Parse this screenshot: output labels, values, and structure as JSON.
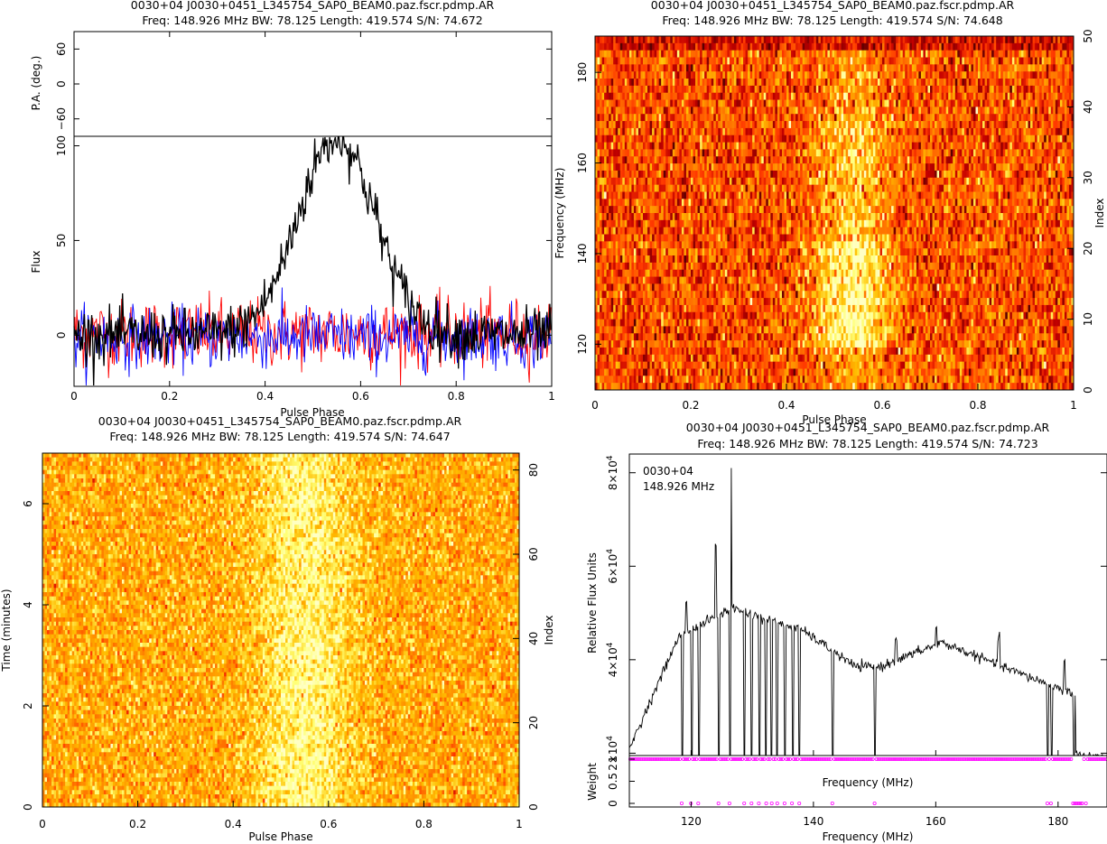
{
  "panels": [
    {
      "id": "profile",
      "type": "line",
      "title_line1": "0030+04  J0030+0451_L345754_SAP0_BEAM0.paz.fscr.pdmp.AR",
      "title_line2": "Freq: 148.926 MHz BW: 78.125 Length: 419.574 S/N: 74.672",
      "pa_ylabel": "P.A. (deg.)",
      "pa_ticks": [
        "60",
        "0",
        "−60"
      ],
      "pa_values": [
        60,
        0,
        -60
      ],
      "pa_ylim": [
        -90,
        90
      ],
      "flux_ylabel": "Flux",
      "flux_ticks": [
        "100",
        "50",
        "0"
      ],
      "flux_values": [
        100,
        50,
        0
      ],
      "flux_ylim": [
        -27,
        105
      ],
      "xlabel": "Pulse Phase",
      "xticks": [
        "0",
        "0.2",
        "0.4",
        "0.6",
        "0.8",
        "1"
      ],
      "xlim": [
        0,
        1
      ],
      "series_colors": {
        "total_intensity": "#000000",
        "linear": "#ff0000",
        "circular": "#0000ff"
      },
      "pulse_peak": {
        "phase": 0.55,
        "flux": 105,
        "width": 0.08
      },
      "noise_rms": 7
    },
    {
      "id": "freq-phase",
      "type": "heatmap",
      "title_line1": "0030+04  J0030+0451_L345754_SAP0_BEAM0.paz.fscr.pdmp.AR",
      "title_line2": "Freq: 148.926 MHz BW: 78.125 Length: 419.574 S/N: 74.648",
      "ylabel": "Frequency (MHz)",
      "yticks": [
        "180",
        "160",
        "140",
        "120"
      ],
      "ytick_values": [
        180,
        160,
        140,
        120
      ],
      "ylim": [
        109.9,
        188.0
      ],
      "right_label": "Index",
      "right_ticks": [
        "50",
        "40",
        "30",
        "20",
        "10",
        "0"
      ],
      "right_values": [
        50,
        40,
        30,
        20,
        10,
        0
      ],
      "right_lim": [
        0,
        50
      ],
      "xlabel": "Pulse Phase",
      "xticks": [
        "0",
        "0.2",
        "0.4",
        "0.6",
        "0.8",
        "1"
      ],
      "xlim": [
        0,
        1
      ],
      "colormap": "heat",
      "n_channels": 50
    },
    {
      "id": "time-phase",
      "type": "heatmap",
      "title_line1": "0030+04  J0030+0451_L345754_SAP0_BEAM0.paz.fscr.pdmp.AR",
      "title_line2": "Freq: 148.926 MHz BW: 78.125 Length: 419.574 S/N: 74.647",
      "ylabel": "Time (minutes)",
      "yticks": [
        "6",
        "4",
        "2",
        "0"
      ],
      "ytick_values": [
        6,
        4,
        2,
        0
      ],
      "ylim": [
        0,
        7
      ],
      "right_label": "Index",
      "right_ticks": [
        "80",
        "60",
        "40",
        "20",
        "0"
      ],
      "right_values": [
        80,
        60,
        40,
        20,
        0
      ],
      "right_lim": [
        0,
        84
      ],
      "xlabel": "Pulse Phase",
      "xticks": [
        "0",
        "0.2",
        "0.4",
        "0.6",
        "0.8",
        "1"
      ],
      "xlim": [
        0,
        1
      ],
      "colormap": "heat",
      "n_subints": 84
    },
    {
      "id": "bandpass",
      "type": "line",
      "title_line1": "0030+04  J0030+0451_L345754_SAP0_BEAM0.paz.fscr.pdmp.AR",
      "title_line2": "Freq: 148.926 MHz BW: 78.125 Length: 419.574 S/N: 74.723",
      "annotation_line1": "0030+04",
      "annotation_line2": "148.926 MHz",
      "ylabel": "Relative Flux Units",
      "yticks_base": [
        "8×10",
        "6×10",
        "4×10",
        "2×10"
      ],
      "ytick_exponent": "4",
      "ytick_values": [
        80000,
        60000,
        40000,
        20000
      ],
      "ylim": [
        19500,
        84000
      ],
      "xlabel": "Frequency (MHz)",
      "weight_ylabel": "Weight",
      "weight_ticks": [
        "1",
        "0.5",
        "0"
      ],
      "weight_values": [
        1,
        0.5,
        0
      ],
      "xticks": [
        "120",
        "140",
        "160",
        "180"
      ],
      "xtick_values": [
        120,
        140,
        160,
        180
      ],
      "xlim": [
        109.9,
        188.0
      ],
      "bandpass_color": "#000000",
      "weight_color": "#ff00ff",
      "zapped_channels_mhz": [
        118.6,
        120.1,
        121.3,
        124.6,
        126.4,
        128.7,
        129.9,
        131.2,
        132.2,
        133.1,
        134.1,
        135.3,
        136.6,
        137.7,
        143.1,
        150.0,
        178.3,
        178.9,
        182.6,
        183.2,
        183.8,
        184.5
      ]
    }
  ]
}
